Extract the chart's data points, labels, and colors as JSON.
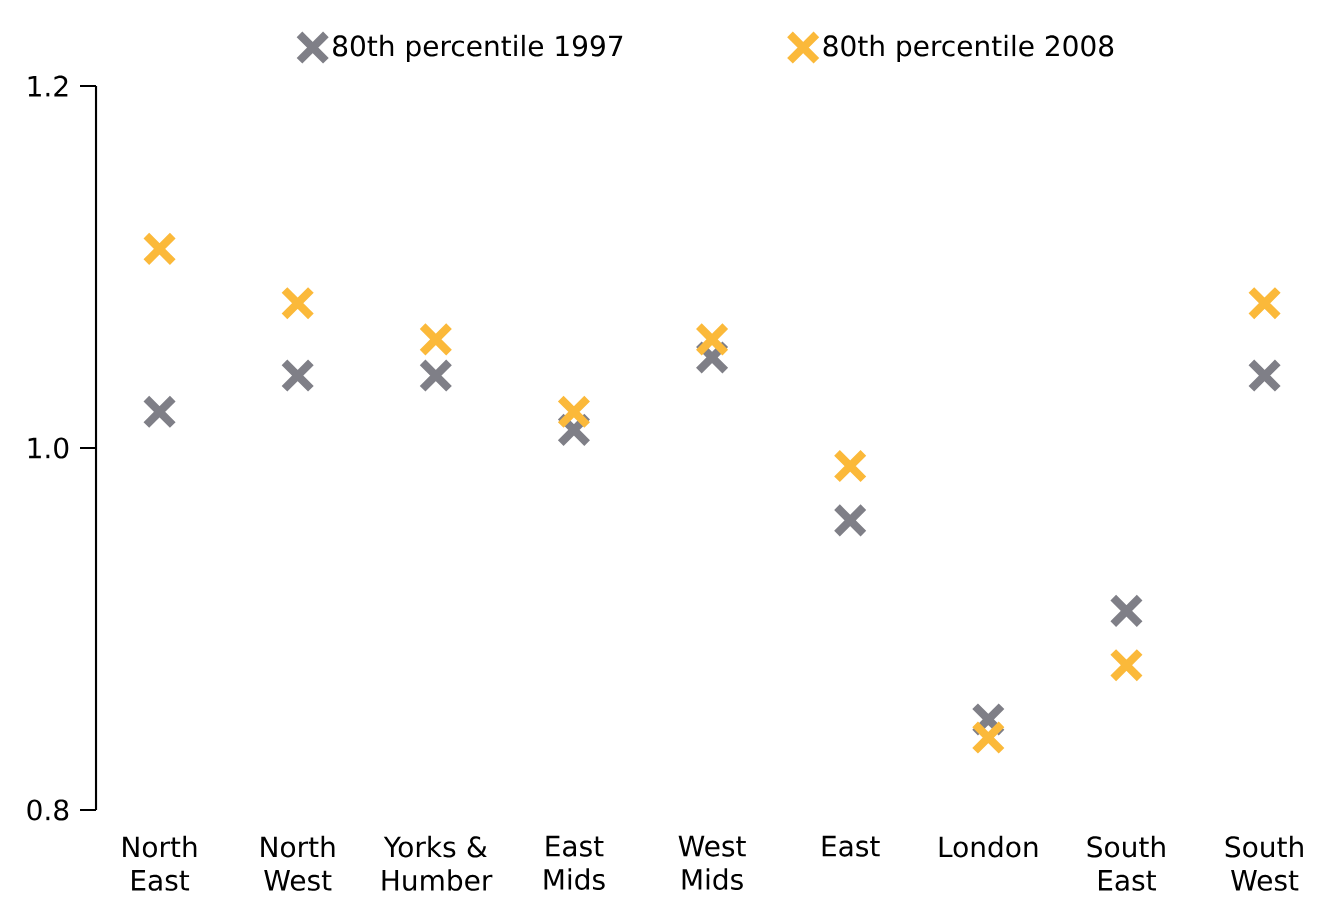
{
  "chart_data": {
    "type": "scatter",
    "categories": [
      "North East",
      "North West",
      "Yorks & Humber",
      "East Mids",
      "West Mids",
      "East",
      "London",
      "South East",
      "South West"
    ],
    "series": [
      {
        "name": "80th percentile 1997",
        "color": "#7f7f87",
        "values": [
          1.02,
          1.04,
          1.04,
          1.01,
          1.05,
          0.96,
          0.85,
          0.91,
          1.04
        ]
      },
      {
        "name": "80th percentile 2008",
        "color": "#fbb93a",
        "values": [
          1.11,
          1.08,
          1.06,
          1.02,
          1.06,
          0.99,
          0.84,
          0.88,
          1.08
        ]
      }
    ],
    "ylim": [
      0.8,
      1.2
    ],
    "yticks": [
      0.8,
      {
        "value": 1.0,
        "label": "1.0"
      },
      1.2
    ],
    "marker": "cross",
    "legend": "top",
    "grid": false
  }
}
